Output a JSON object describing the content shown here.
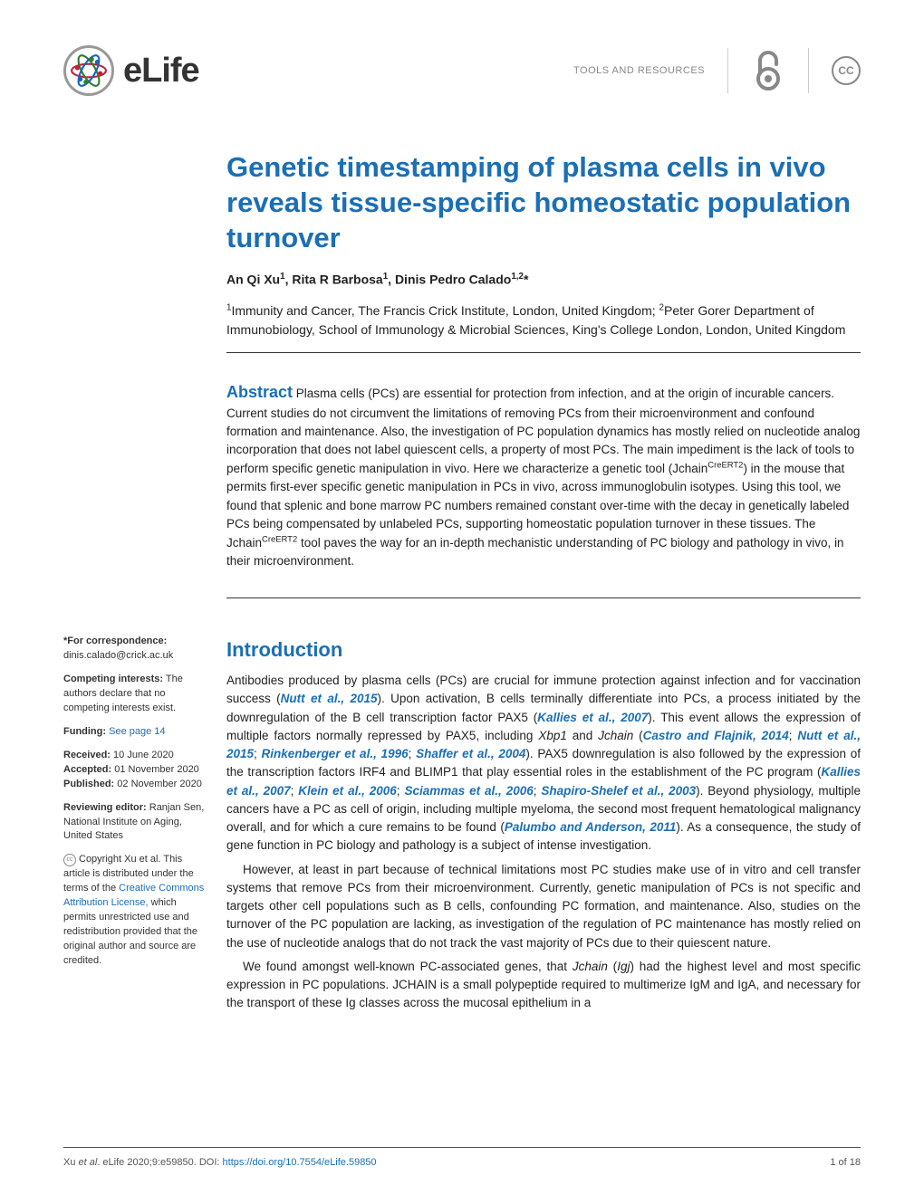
{
  "header": {
    "journal": "eLife",
    "section": "TOOLS AND RESOURCES",
    "cc_label": "CC"
  },
  "colors": {
    "accent": "#1a6fb5",
    "text": "#222222",
    "muted": "#888888",
    "rule": "#333333"
  },
  "title": "Genetic timestamping of plasma cells in vivo reveals tissue-specific homeostatic population turnover",
  "authors_html": "An Qi Xu<sup>1</sup>, Rita R Barbosa<sup>1</sup>, Dinis Pedro Calado<sup>1,2</sup>*",
  "affiliations_html": "<sup>1</sup>Immunity and Cancer, The Francis Crick Institute, London, United Kingdom; <sup>2</sup>Peter Gorer Department of Immunobiology, School of Immunology & Microbial Sciences, King's College London, London, United Kingdom",
  "abstract": {
    "label": "Abstract",
    "text_html": " Plasma cells (PCs) are essential for protection from infection, and at the origin of incurable cancers. Current studies do not circumvent the limitations of removing PCs from their microenvironment and confound formation and maintenance. Also, the investigation of PC population dynamics has mostly relied on nucleotide analog incorporation that does not label quiescent cells, a property of most PCs. The main impediment is the lack of tools to perform specific genetic manipulation in vivo. Here we characterize a genetic tool (Jchain<sup>CreERT2</sup>) in the mouse that permits first-ever specific genetic manipulation in PCs in vivo, across immunoglobulin isotypes. Using this tool, we found that splenic and bone marrow PC numbers remained constant over-time with the decay in genetically labeled PCs being compensated by unlabeled PCs, supporting homeostatic population turnover in these tissues. The Jchain<sup>CreERT2</sup> tool paves the way for an in-depth mechanistic understanding of PC biology and pathology in vivo, in their microenvironment."
  },
  "intro": {
    "heading": "Introduction",
    "p1_html": "Antibodies produced by plasma cells (PCs) are crucial for immune protection against infection and for vaccination success (<span class='cite accent'>Nutt et al., 2015</span>). Upon activation, B cells terminally differentiate into PCs, a process initiated by the downregulation of the B cell transcription factor PAX5 (<span class='cite accent'>Kallies et al., 2007</span>). This event allows the expression of multiple factors normally repressed by PAX5, including <i>Xbp1</i> and <i>Jchain</i> (<span class='cite accent'>Castro and Flajnik, 2014</span>; <span class='cite accent'>Nutt et al., 2015</span>; <span class='cite accent'>Rinkenberger et al., 1996</span>; <span class='cite accent'>Shaffer et al., 2004</span>). PAX5 downregulation is also followed by the expression of the transcription factors IRF4 and BLIMP1 that play essential roles in the establishment of the PC program (<span class='cite accent'>Kallies et al., 2007</span>; <span class='cite accent'>Klein et al., 2006</span>; <span class='cite accent'>Sciammas et al., 2006</span>; <span class='cite accent'>Shapiro-Shelef et al., 2003</span>). Beyond physiology, multiple cancers have a PC as cell of origin, including multiple myeloma, the second most frequent hematological malignancy overall, and for which a cure remains to be found (<span class='cite accent'>Palumbo and Anderson, 2011</span>). As a consequence, the study of gene function in PC biology and pathology is a subject of intense investigation.",
    "p2_html": "However, at least in part because of technical limitations most PC studies make use of in vitro and cell transfer systems that remove PCs from their microenvironment. Currently, genetic manipulation of PCs is not specific and targets other cell populations such as B cells, confounding PC formation, and maintenance. Also, studies on the turnover of the PC population are lacking, as investigation of the regulation of PC maintenance has mostly relied on the use of nucleotide analogs that do not track the vast majority of PCs due to their quiescent nature.",
    "p3_html": "We found amongst well-known PC-associated genes, that <i>Jchain</i> (<i>Igj</i>) had the highest level and most specific expression in PC populations. JCHAIN is a small polypeptide required to multimerize IgM and IgA, and necessary for the transport of these Ig classes across the mucosal epithelium in a"
  },
  "sidebar": {
    "correspondence_label": "*For correspondence:",
    "correspondence_email": "dinis.calado@crick.ac.uk",
    "competing_label": "Competing interests:",
    "competing_text": " The authors declare that no competing interests exist.",
    "funding_label": "Funding:",
    "funding_link": "See page 14",
    "received_label": "Received:",
    "received_date": " 10 June 2020",
    "accepted_label": "Accepted:",
    "accepted_date": " 01 November 2020",
    "published_label": "Published:",
    "published_date": " 02 November 2020",
    "reviewing_label": "Reviewing editor:",
    "reviewing_text": " Ranjan Sen, National Institute on Aging, United States",
    "copyright_html": "Copyright Xu et al. This article is distributed under the terms of the <a href='#'>Creative Commons Attribution License,</a> which permits unrestricted use and redistribution provided that the original author and source are credited."
  },
  "footer": {
    "citation_html": "Xu <i>et al</i>. eLife 2020;9:e59850. DOI: <a href='#'>https://doi.org/10.7554/eLife.59850</a>",
    "page": "1 of 18"
  }
}
